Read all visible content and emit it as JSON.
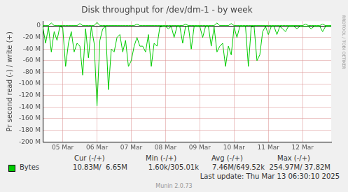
{
  "chart_data": {
    "type": "line",
    "title": "Disk throughput for /dev/dm-1 - by week",
    "y_label": "Pr second read (-) / write (+)",
    "categories": [
      null,
      null,
      null,
      null,
      null,
      null,
      null,
      "05 Mar",
      null,
      null,
      null,
      null,
      null,
      null,
      null,
      null,
      null,
      null,
      null,
      "06 Mar",
      null,
      null,
      null,
      null,
      null,
      null,
      null,
      null,
      null,
      null,
      null,
      "07 Mar",
      null,
      null,
      null,
      null,
      null,
      null,
      null,
      null,
      null,
      null,
      null,
      "08 Mar",
      null,
      null,
      null,
      null,
      null,
      null,
      null,
      null,
      null,
      null,
      null,
      "09 Mar",
      null,
      null,
      null,
      null,
      null,
      null,
      null,
      null,
      null,
      null,
      null,
      "10 Mar",
      null,
      null,
      null,
      null,
      null,
      null,
      null,
      null,
      null,
      null,
      null,
      "11 Mar",
      null,
      null,
      null,
      null,
      null,
      null,
      null,
      null,
      null,
      null,
      null,
      "12 Mar",
      null,
      null,
      null,
      null,
      null,
      null,
      null,
      null,
      null,
      null
    ],
    "series": [
      {
        "name": "Bytes",
        "color": "#00cc00",
        "read": [
          -1,
          -30,
          -2,
          -45,
          -10,
          -25,
          -1,
          -3,
          -70,
          -30,
          -10,
          -45,
          -30,
          -35,
          -85,
          -5,
          -55,
          -2,
          -30,
          -138,
          -25,
          -5,
          -1,
          -110,
          -40,
          -45,
          -20,
          -15,
          -45,
          -25,
          -70,
          -60,
          -35,
          -20,
          -35,
          -35,
          -45,
          -15,
          -70,
          -30,
          -35,
          -2,
          -1,
          -1,
          -5,
          -1,
          -20,
          -1,
          -1,
          -30,
          -1,
          -1,
          -40,
          -1,
          -1,
          -1,
          -20,
          -1,
          -1,
          -35,
          -2,
          -45,
          -35,
          -30,
          -70,
          -35,
          -50,
          -2,
          -20,
          -1,
          -1,
          -1,
          -70,
          -2,
          -1,
          -60,
          -50,
          -10,
          -1,
          -15,
          -1,
          -1,
          -15,
          -1,
          -5,
          -10,
          -1,
          -1,
          -1,
          -5,
          -1,
          -1,
          -1,
          -1,
          -5,
          -1,
          -1,
          -1,
          -10,
          -1,
          -1,
          -1
        ],
        "write": [
          0.5,
          0.5,
          0.5,
          5,
          0.5,
          0.5,
          0.5,
          0.5,
          0.5,
          0.5,
          0.5,
          0.5,
          0.5,
          4,
          0.5,
          0.5,
          0.5,
          0.5,
          0.5,
          6,
          0.5,
          0.5,
          0.5,
          0.5,
          0.5,
          0.5,
          0.5,
          0.5,
          0.5,
          0.5,
          0.5,
          0.5,
          0.5,
          3,
          0.5,
          0.5,
          0.5,
          0.5,
          0.5,
          0.5,
          0.5,
          0.5,
          0.5,
          0.5,
          0.5,
          0.5,
          0.5,
          0.5,
          0.5,
          0.5,
          3,
          0.5,
          0.5,
          0.5,
          0.5,
          0.5,
          0.5,
          0.5,
          0.5,
          0.5,
          0.5,
          5,
          0.5,
          0.5,
          0.5,
          0.5,
          4,
          0.5,
          0.5,
          0.5,
          0.5,
          0.5,
          0.5,
          0.5,
          0.5,
          0.5,
          0.5,
          0.5,
          0.5,
          0.5,
          0.5,
          0.5,
          0.5,
          0.5,
          0.5,
          0.5,
          0.5,
          0.5,
          0.5,
          0.5,
          0.5,
          0.5,
          3,
          0.5,
          0.5,
          0.5,
          0.5,
          0.5,
          3,
          0.5,
          0.5,
          0.5
        ]
      }
    ],
    "ylim": [
      -200,
      8
    ],
    "yticks": [
      0,
      {
        "value": -20,
        "label": "-20 M"
      },
      {
        "value": -40,
        "label": "-40 M"
      },
      {
        "value": -60,
        "label": "-60 M"
      },
      {
        "value": -80,
        "label": "-80 M"
      },
      {
        "value": -100,
        "label": "-100 M"
      },
      {
        "value": -120,
        "label": "-120 M"
      },
      {
        "value": -140,
        "label": "-140 M"
      },
      {
        "value": -160,
        "label": "-160 M"
      },
      {
        "value": -180,
        "label": "-180 M"
      },
      {
        "value": -200,
        "label": "-200 M"
      }
    ],
    "grid": true,
    "stats": {
      "columns": [
        "Cur (-/+)",
        "Min (-/+)",
        "Avg (-/+)",
        "Max (-/+)"
      ],
      "values": [
        "10.83M/  6.65M",
        "1.60k/305.01k",
        "7.46M/649.52k",
        "254.97M/ 37.82M"
      ]
    },
    "footer": "Last update: Thu Mar 13 06:30:10 2025",
    "credit": "Munin 2.0.73",
    "watermark": "RRDTOOL / TOBI OETIKER"
  }
}
